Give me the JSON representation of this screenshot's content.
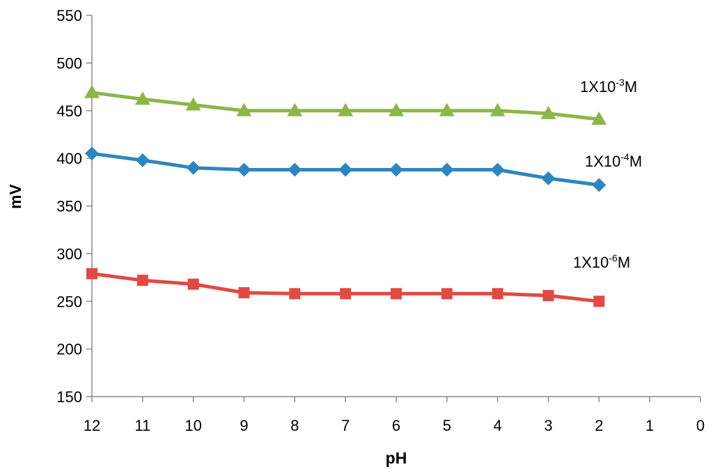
{
  "chart_data": {
    "type": "line",
    "xlabel": "pH",
    "ylabel": "mV",
    "xlim": [
      0,
      12
    ],
    "ylim": [
      150,
      550
    ],
    "x_reversed": true,
    "x_ticks": [
      12,
      11,
      10,
      9,
      8,
      7,
      6,
      5,
      4,
      3,
      2,
      1,
      0
    ],
    "y_ticks": [
      150,
      200,
      250,
      300,
      350,
      400,
      450,
      500,
      550
    ],
    "grid": false,
    "legend": "none",
    "x": [
      12,
      11,
      10,
      9,
      8,
      7,
      6,
      5,
      4,
      3,
      2
    ],
    "series": [
      {
        "label_base": "1X10",
        "label_exp": "-3",
        "label_unit": "M",
        "marker": "triangle",
        "color": "#8DB54B",
        "values": [
          469,
          462,
          456,
          450,
          450,
          450,
          450,
          450,
          450,
          447,
          441
        ]
      },
      {
        "label_base": "1X10",
        "label_exp": "-4",
        "label_unit": "M",
        "marker": "diamond",
        "color": "#2E86C1",
        "values": [
          405,
          398,
          390,
          388,
          388,
          388,
          388,
          388,
          388,
          379,
          372
        ]
      },
      {
        "label_base": "1X10",
        "label_exp": "-6",
        "label_unit": "M",
        "marker": "square",
        "color": "#E04A43",
        "values": [
          279,
          272,
          268,
          259,
          258,
          258,
          258,
          258,
          258,
          256,
          250
        ]
      }
    ]
  }
}
